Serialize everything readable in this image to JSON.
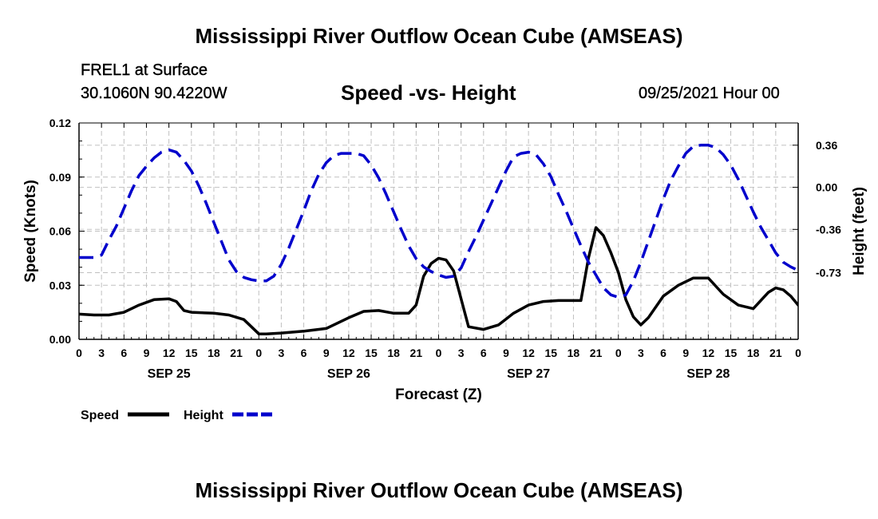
{
  "header": {
    "title": "Mississippi River Outflow Ocean Cube (AMSEAS)",
    "station": "FREL1 at Surface",
    "coords": "30.1060N  90.4220W",
    "subtitle": "Speed -vs- Height",
    "datetime": "09/25/2021 Hour 00"
  },
  "footer": {
    "title": "Mississippi River Outflow Ocean Cube (AMSEAS)"
  },
  "colors": {
    "speed": "#000000",
    "height": "#0000cc",
    "grid": "#c0c0c0"
  },
  "chart_data": {
    "type": "line",
    "title": "Speed -vs- Height",
    "xlabel": "Forecast (Z)",
    "ylabel": "Speed (Knots)",
    "y2label": "Height (feet)",
    "xlim": [
      0,
      96
    ],
    "ylim": [
      0,
      0.12
    ],
    "y2lim": [
      -1.3,
      0.55
    ],
    "x_ticks": [
      0,
      3,
      6,
      9,
      12,
      15,
      18,
      21,
      24,
      27,
      30,
      33,
      36,
      39,
      42,
      45,
      48,
      51,
      54,
      57,
      60,
      63,
      66,
      69,
      72,
      75,
      78,
      81,
      84,
      87,
      90,
      93,
      96
    ],
    "x_tick_labels": [
      "0",
      "3",
      "6",
      "9",
      "12",
      "15",
      "18",
      "21",
      "0",
      "3",
      "6",
      "9",
      "12",
      "15",
      "18",
      "21",
      "0",
      "3",
      "6",
      "9",
      "12",
      "15",
      "18",
      "21",
      "0",
      "3",
      "6",
      "9",
      "12",
      "15",
      "18",
      "21",
      "0"
    ],
    "day_labels": [
      {
        "label": "SEP 25",
        "x": 12
      },
      {
        "label": "SEP 26",
        "x": 36
      },
      {
        "label": "SEP 27",
        "x": 60
      },
      {
        "label": "SEP 28",
        "x": 84
      }
    ],
    "y_ticks": [
      0.0,
      0.03,
      0.06,
      0.09,
      0.12
    ],
    "y_tick_labels": [
      "0.00",
      "0.03",
      "0.06",
      "0.09",
      "0.12"
    ],
    "y2_ticks": [
      0.36,
      0.0,
      -0.36,
      -0.73
    ],
    "y2_tick_labels": [
      "0.36",
      "0.00",
      "-0.36",
      "-0.73"
    ],
    "legend": [
      {
        "name": "Speed",
        "key": "speed"
      },
      {
        "name": "Height",
        "key": "height"
      }
    ],
    "series": [
      {
        "name": "Speed",
        "axis": "left",
        "style": "solid",
        "color": "#000000",
        "x": [
          0,
          2,
          4,
          6,
          8,
          10,
          12,
          13,
          14,
          15,
          18,
          20,
          22,
          23,
          24,
          25,
          27,
          30,
          33,
          36,
          38,
          40,
          42,
          43,
          44,
          45,
          46,
          47,
          48,
          49,
          50,
          52,
          54,
          56,
          58,
          60,
          62,
          64,
          66,
          66.5,
          67,
          68,
          69,
          70,
          71,
          72,
          73,
          74,
          75,
          76,
          78,
          80,
          82,
          84,
          86,
          88,
          90,
          92,
          93,
          94,
          95,
          96
        ],
        "y": [
          0.014,
          0.0135,
          0.0135,
          0.015,
          0.019,
          0.022,
          0.0225,
          0.021,
          0.016,
          0.015,
          0.0145,
          0.0135,
          0.011,
          0.007,
          0.003,
          0.003,
          0.0035,
          0.0045,
          0.006,
          0.012,
          0.0155,
          0.016,
          0.0145,
          0.0145,
          0.0145,
          0.019,
          0.035,
          0.042,
          0.045,
          0.044,
          0.038,
          0.007,
          0.0055,
          0.008,
          0.0145,
          0.019,
          0.021,
          0.0215,
          0.0215,
          0.0215,
          0.0215,
          0.045,
          0.062,
          0.0575,
          0.048,
          0.037,
          0.022,
          0.0125,
          0.008,
          0.012,
          0.024,
          0.03,
          0.034,
          0.034,
          0.025,
          0.019,
          0.017,
          0.026,
          0.0285,
          0.0275,
          0.024,
          0.019
        ]
      },
      {
        "name": "Height",
        "axis": "right",
        "style": "dashed",
        "color": "#0000cc",
        "x": [
          0,
          1,
          2,
          3,
          4,
          5,
          6,
          7,
          8,
          9,
          10,
          11,
          12,
          13,
          14,
          15,
          16,
          17,
          18,
          19,
          20,
          21,
          22,
          23,
          24,
          25,
          26,
          27,
          28,
          29,
          30,
          31,
          32,
          33,
          34,
          35,
          36,
          37,
          38,
          39,
          40,
          41,
          42,
          43,
          44,
          45,
          46,
          47,
          48,
          49,
          50,
          51,
          52,
          53,
          54,
          55,
          56,
          57,
          58,
          59,
          60,
          61,
          62,
          63,
          64,
          65,
          66,
          67,
          68,
          69,
          70,
          71,
          72,
          73,
          74,
          75,
          76,
          77,
          78,
          79,
          80,
          81,
          82,
          83,
          84,
          85,
          86,
          87,
          88,
          89,
          90,
          91,
          92,
          93,
          94,
          95,
          96
        ],
        "y": [
          -0.6,
          -0.6,
          -0.6,
          -0.58,
          -0.45,
          -0.33,
          -0.18,
          -0.03,
          0.1,
          0.18,
          0.25,
          0.3,
          0.32,
          0.3,
          0.23,
          0.14,
          0.01,
          -0.14,
          -0.3,
          -0.46,
          -0.62,
          -0.72,
          -0.77,
          -0.79,
          -0.8,
          -0.8,
          -0.76,
          -0.66,
          -0.52,
          -0.36,
          -0.2,
          -0.03,
          0.11,
          0.21,
          0.27,
          0.29,
          0.29,
          0.29,
          0.27,
          0.19,
          0.08,
          -0.06,
          -0.21,
          -0.36,
          -0.5,
          -0.61,
          -0.68,
          -0.72,
          -0.75,
          -0.77,
          -0.76,
          -0.69,
          -0.55,
          -0.42,
          -0.28,
          -0.14,
          0.0,
          0.14,
          0.26,
          0.29,
          0.3,
          0.28,
          0.2,
          0.09,
          -0.06,
          -0.2,
          -0.35,
          -0.5,
          -0.64,
          -0.75,
          -0.86,
          -0.92,
          -0.94,
          -0.92,
          -0.8,
          -0.64,
          -0.46,
          -0.28,
          -0.1,
          0.06,
          0.18,
          0.29,
          0.35,
          0.36,
          0.36,
          0.34,
          0.28,
          0.19,
          0.07,
          -0.07,
          -0.21,
          -0.34,
          -0.45,
          -0.56,
          -0.64,
          -0.68,
          -0.71
        ]
      }
    ]
  }
}
